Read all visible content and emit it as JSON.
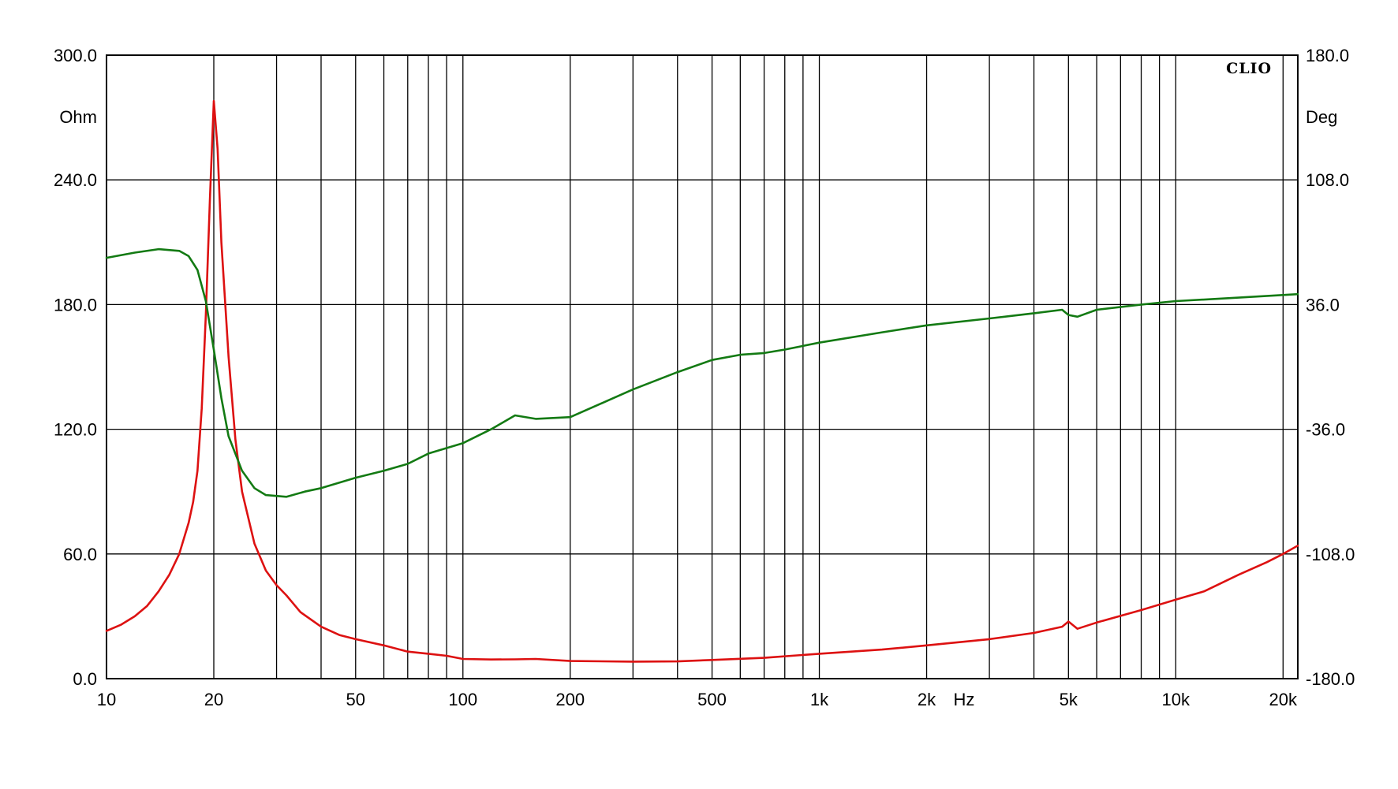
{
  "chart_data": {
    "type": "line",
    "brand": "CLIO",
    "x_scale": "log",
    "xlim": [
      10,
      22000
    ],
    "grid": true,
    "x_tick_labels": [
      {
        "value": 10,
        "label": "10"
      },
      {
        "value": 20,
        "label": "20"
      },
      {
        "value": 50,
        "label": "50"
      },
      {
        "value": 100,
        "label": "100"
      },
      {
        "value": 200,
        "label": "200"
      },
      {
        "value": 500,
        "label": "500"
      },
      {
        "value": 1000,
        "label": "1k"
      },
      {
        "value": 2000,
        "label": "2k"
      },
      {
        "value": 5000,
        "label": "5k"
      },
      {
        "value": 10000,
        "label": "10k"
      },
      {
        "value": 20000,
        "label": "20k"
      }
    ],
    "x_unit_label": "Hz",
    "y_left": {
      "unit": "Ohm",
      "ylim": [
        0,
        300
      ],
      "ticks": [
        0,
        60,
        120,
        180,
        240,
        300
      ],
      "tick_labels": [
        "0.0",
        "60.0",
        "120.0",
        "180.0",
        "240.0",
        "300.0"
      ]
    },
    "y_right": {
      "unit": "Deg",
      "ylim": [
        -180,
        180
      ],
      "ticks": [
        -180,
        -108,
        -36,
        36,
        108,
        180
      ],
      "tick_labels": [
        "-180.0",
        "-108.0",
        "-36.0",
        "36.0",
        "108.0",
        "180.0"
      ]
    },
    "series": [
      {
        "axis": "left",
        "color": "#dd1111",
        "points": [
          [
            10,
            23
          ],
          [
            11,
            26
          ],
          [
            12,
            30
          ],
          [
            13,
            35
          ],
          [
            14,
            42
          ],
          [
            15,
            50
          ],
          [
            16,
            60
          ],
          [
            17,
            75
          ],
          [
            17.5,
            85
          ],
          [
            18,
            100
          ],
          [
            18.5,
            130
          ],
          [
            19,
            175
          ],
          [
            19.5,
            230
          ],
          [
            20,
            278
          ],
          [
            20.5,
            255
          ],
          [
            21,
            210
          ],
          [
            22,
            155
          ],
          [
            23,
            115
          ],
          [
            24,
            90
          ],
          [
            26,
            65
          ],
          [
            28,
            52
          ],
          [
            30,
            45
          ],
          [
            32,
            40
          ],
          [
            35,
            32
          ],
          [
            40,
            25
          ],
          [
            45,
            21
          ],
          [
            50,
            19
          ],
          [
            60,
            16
          ],
          [
            70,
            13
          ],
          [
            80,
            12
          ],
          [
            90,
            11
          ],
          [
            100,
            9.5
          ],
          [
            120,
            9.2
          ],
          [
            140,
            9.3
          ],
          [
            160,
            9.5
          ],
          [
            200,
            8.5
          ],
          [
            300,
            8.2
          ],
          [
            400,
            8.3
          ],
          [
            500,
            9
          ],
          [
            700,
            10
          ],
          [
            1000,
            12
          ],
          [
            1500,
            14
          ],
          [
            2000,
            16
          ],
          [
            3000,
            19
          ],
          [
            4000,
            22
          ],
          [
            4800,
            25
          ],
          [
            5000,
            27.5
          ],
          [
            5300,
            24
          ],
          [
            6000,
            27
          ],
          [
            8000,
            33
          ],
          [
            10000,
            38
          ],
          [
            12000,
            42
          ],
          [
            15000,
            50
          ],
          [
            18000,
            56
          ],
          [
            20000,
            60
          ],
          [
            22000,
            64
          ]
        ]
      },
      {
        "axis": "right",
        "color": "#137a13",
        "points": [
          [
            10,
            63
          ],
          [
            12,
            66
          ],
          [
            14,
            68
          ],
          [
            16,
            67
          ],
          [
            17,
            64
          ],
          [
            18,
            56
          ],
          [
            19,
            38
          ],
          [
            20,
            10
          ],
          [
            21,
            -18
          ],
          [
            22,
            -40
          ],
          [
            24,
            -60
          ],
          [
            26,
            -70
          ],
          [
            28,
            -74
          ],
          [
            32,
            -75
          ],
          [
            36,
            -72
          ],
          [
            40,
            -70
          ],
          [
            50,
            -64
          ],
          [
            60,
            -60
          ],
          [
            70,
            -56
          ],
          [
            80,
            -50
          ],
          [
            100,
            -44
          ],
          [
            120,
            -36
          ],
          [
            140,
            -28
          ],
          [
            160,
            -30
          ],
          [
            200,
            -29
          ],
          [
            300,
            -13
          ],
          [
            400,
            -3
          ],
          [
            500,
            4
          ],
          [
            600,
            7
          ],
          [
            700,
            8
          ],
          [
            800,
            10
          ],
          [
            1000,
            14
          ],
          [
            1500,
            20
          ],
          [
            2000,
            24
          ],
          [
            3000,
            28
          ],
          [
            4000,
            31
          ],
          [
            4800,
            33
          ],
          [
            5000,
            30
          ],
          [
            5300,
            29
          ],
          [
            6000,
            33
          ],
          [
            8000,
            36
          ],
          [
            10000,
            38
          ],
          [
            15000,
            40
          ],
          [
            22000,
            42
          ]
        ]
      }
    ]
  }
}
